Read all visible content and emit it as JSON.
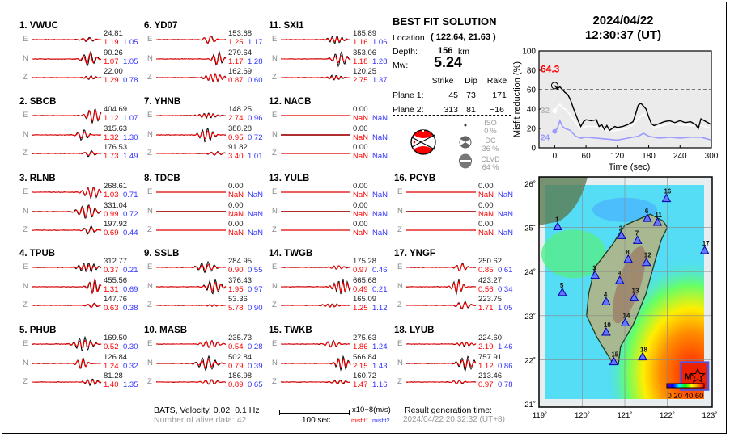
{
  "stations": [
    {
      "label": "1.  VWUC",
      "traces": [
        {
          "comp": "E",
          "amp": "24.81",
          "m1": "1.19",
          "m2": "1.05"
        },
        {
          "comp": "N",
          "amp": "90.26",
          "m1": "1.07",
          "m2": "1.05"
        },
        {
          "comp": "Z",
          "amp": "22.00",
          "m1": "1.29",
          "m2": "0.78"
        }
      ]
    },
    {
      "label": "2.  SBCB",
      "traces": [
        {
          "comp": "E",
          "amp": "404.69",
          "m1": "1.12",
          "m2": "1.07"
        },
        {
          "comp": "N",
          "amp": "315.63",
          "m1": "1.32",
          "m2": "1.30"
        },
        {
          "comp": "Z",
          "amp": "176.53",
          "m1": "1.73",
          "m2": "1.49"
        }
      ]
    },
    {
      "label": "3.  RLNB",
      "traces": [
        {
          "comp": "E",
          "amp": "268.61",
          "m1": "1.03",
          "m2": "0.71"
        },
        {
          "comp": "N",
          "amp": "331.04",
          "m1": "0.99",
          "m2": "0.72"
        },
        {
          "comp": "Z",
          "amp": "197.92",
          "m1": "0.69",
          "m2": "0.44"
        }
      ]
    },
    {
      "label": "4.  TPUB",
      "traces": [
        {
          "comp": "E",
          "amp": "312.77",
          "m1": "0.37",
          "m2": "0.21"
        },
        {
          "comp": "N",
          "amp": "455.56",
          "m1": "1.31",
          "m2": "0.69"
        },
        {
          "comp": "Z",
          "amp": "147.76",
          "m1": "0.63",
          "m2": "0.38"
        }
      ]
    },
    {
      "label": "5.  PHUB",
      "traces": [
        {
          "comp": "E",
          "amp": "169.50",
          "m1": "0.52",
          "m2": "0.30"
        },
        {
          "comp": "N",
          "amp": "126.84",
          "m1": "1.24",
          "m2": "0.32"
        },
        {
          "comp": "Z",
          "amp": "81.28",
          "m1": "1.40",
          "m2": "1.35"
        }
      ]
    },
    {
      "label": "6.  YD07",
      "traces": [
        {
          "comp": "E",
          "amp": "153.68",
          "m1": "1.25",
          "m2": "1.17"
        },
        {
          "comp": "N",
          "amp": "279.64",
          "m1": "1.17",
          "m2": "1.28"
        },
        {
          "comp": "Z",
          "amp": "162.69",
          "m1": "0.87",
          "m2": "0.60"
        }
      ]
    },
    {
      "label": "7.  YHNB",
      "traces": [
        {
          "comp": "E",
          "amp": "148.25",
          "m1": "2.74",
          "m2": "0.96"
        },
        {
          "comp": "N",
          "amp": "388.28",
          "m1": "0.95",
          "m2": "0.72"
        },
        {
          "comp": "Z",
          "amp": "91.82",
          "m1": "3.40",
          "m2": "1.01"
        }
      ]
    },
    {
      "label": "8.  TDCB",
      "traces": [
        {
          "comp": "E",
          "amp": "0.00",
          "m1": "NaN",
          "m2": "NaN"
        },
        {
          "comp": "N",
          "amp": "0.00",
          "m1": "NaN",
          "m2": "NaN"
        },
        {
          "comp": "Z",
          "amp": "0.00",
          "m1": "NaN",
          "m2": "NaN"
        }
      ]
    },
    {
      "label": "9.  SSLB",
      "traces": [
        {
          "comp": "E",
          "amp": "284.95",
          "m1": "0.90",
          "m2": "0.55"
        },
        {
          "comp": "N",
          "amp": "376.43",
          "m1": "1.95",
          "m2": "0.97"
        },
        {
          "comp": "Z",
          "amp": "53.36",
          "m1": "5.78",
          "m2": "0.90"
        }
      ]
    },
    {
      "label": "10. MASB",
      "traces": [
        {
          "comp": "E",
          "amp": "235.73",
          "m1": "0.54",
          "m2": "0.28"
        },
        {
          "comp": "N",
          "amp": "502.84",
          "m1": "0.79",
          "m2": "0.39"
        },
        {
          "comp": "Z",
          "amp": "186.98",
          "m1": "0.89",
          "m2": "0.65"
        }
      ]
    },
    {
      "label": "11. SXI1",
      "traces": [
        {
          "comp": "E",
          "amp": "185.89",
          "m1": "1.16",
          "m2": "1.06"
        },
        {
          "comp": "N",
          "amp": "353.06",
          "m1": "1.18",
          "m2": "1.28"
        },
        {
          "comp": "Z",
          "amp": "120.25",
          "m1": "2.75",
          "m2": "1.37"
        }
      ]
    },
    {
      "label": "12. NACB",
      "traces": [
        {
          "comp": "E",
          "amp": "0.00",
          "m1": "NaN",
          "m2": "NaN"
        },
        {
          "comp": "N",
          "amp": "0.00",
          "m1": "NaN",
          "m2": "NaN"
        },
        {
          "comp": "Z",
          "amp": "0.00",
          "m1": "NaN",
          "m2": "NaN"
        }
      ]
    },
    {
      "label": "13. YULB",
      "traces": [
        {
          "comp": "E",
          "amp": "0.00",
          "m1": "NaN",
          "m2": "NaN"
        },
        {
          "comp": "N",
          "amp": "0.00",
          "m1": "NaN",
          "m2": "NaN"
        },
        {
          "comp": "Z",
          "amp": "0.00",
          "m1": "NaN",
          "m2": "NaN"
        }
      ]
    },
    {
      "label": "14. TWGB",
      "traces": [
        {
          "comp": "E",
          "amp": "175.28",
          "m1": "0.97",
          "m2": "0.46"
        },
        {
          "comp": "N",
          "amp": "665.68",
          "m1": "0.49",
          "m2": "0.21"
        },
        {
          "comp": "Z",
          "amp": "165.09",
          "m1": "1.25",
          "m2": "1.12"
        }
      ]
    },
    {
      "label": "15. TWKB",
      "traces": [
        {
          "comp": "E",
          "amp": "275.63",
          "m1": "1.86",
          "m2": "1.24"
        },
        {
          "comp": "N",
          "amp": "566.84",
          "m1": "2.15",
          "m2": "1.43"
        },
        {
          "comp": "Z",
          "amp": "160.72",
          "m1": "1.47",
          "m2": "1.16"
        }
      ]
    },
    {
      "label": "16. PCYB",
      "traces": [
        {
          "comp": "E",
          "amp": "0.00",
          "m1": "NaN",
          "m2": "NaN"
        },
        {
          "comp": "N",
          "amp": "0.00",
          "m1": "NaN",
          "m2": "NaN"
        },
        {
          "comp": "Z",
          "amp": "0.00",
          "m1": "NaN",
          "m2": "NaN"
        }
      ]
    },
    {
      "label": "17. YNGF",
      "traces": [
        {
          "comp": "E",
          "amp": "250.62",
          "m1": "0.85",
          "m2": "0.61"
        },
        {
          "comp": "N",
          "amp": "423.27",
          "m1": "0.56",
          "m2": "0.34"
        },
        {
          "comp": "Z",
          "amp": "223.75",
          "m1": "1.71",
          "m2": "1.05"
        }
      ]
    },
    {
      "label": "18. LYUB",
      "traces": [
        {
          "comp": "E",
          "amp": "224.60",
          "m1": "2.19",
          "m2": "1.46"
        },
        {
          "comp": "N",
          "amp": "757.91",
          "m1": "1.12",
          "m2": "0.86"
        },
        {
          "comp": "Z",
          "amp": "213.46",
          "m1": "0.97",
          "m2": "0.78"
        }
      ]
    }
  ],
  "solution": {
    "title": "BEST FIT SOLUTION",
    "location_label": "Location",
    "location_value": "( 122.64,  21.63 )",
    "depth_label": "Depth:",
    "depth_value": "156",
    "depth_unit": "km",
    "mw_label": "Mw:",
    "mw_value": "5.24",
    "headers": [
      "Strike",
      "Dip",
      "Rake"
    ],
    "planes": [
      {
        "label": "Plane 1:",
        "strike": "45",
        "dip": "73",
        "rake": "−171"
      },
      {
        "label": "Plane 2:",
        "strike": "313",
        "dip": "81",
        "rake": "−16"
      }
    ],
    "components": [
      {
        "name": "ISO",
        "pct": "0 %"
      },
      {
        "name": "DC",
        "pct": "36 %"
      },
      {
        "name": "CLVD",
        "pct": "64 %"
      }
    ]
  },
  "footer": {
    "network_info": "BATS, Velocity, 0.02−0.1 Hz",
    "alive": "Number of alive data: 42",
    "scale_label": "100 sec",
    "unit": "x10−8(m/s)",
    "misfit1": "misfit1",
    "misfit2": "misfit2",
    "gen_label": "Result generation time:",
    "gen_time": "2024/04/22 20:32:32 (UT+8)"
  },
  "event": {
    "date": "2024/04/22",
    "time": "12:30:37  (UT)"
  },
  "chart_data": {
    "type": "line",
    "xlabel": "Time (sec)",
    "ylabel": "Misfit reduction (%)",
    "xlim": [
      -30,
      300
    ],
    "ylim": [
      0,
      100
    ],
    "xticks": [
      "0",
      "60",
      "120",
      "180",
      "240",
      "300"
    ],
    "yticks": [
      "0",
      "20",
      "40",
      "60",
      "80",
      "100"
    ],
    "threshold": 60,
    "annotations": {
      "best": "64.3",
      "white_start": "32",
      "blue_start": "24"
    },
    "colors": {
      "black": "#000000",
      "white": "#ffffff",
      "blue": "#9999ff",
      "best": "#ff0000"
    },
    "series": [
      {
        "color": "black",
        "x": [
          0,
          5,
          10,
          15,
          20,
          25,
          30,
          35,
          40,
          45,
          50,
          55,
          60,
          70,
          80,
          85,
          90,
          95,
          100,
          105,
          110,
          115,
          120,
          130,
          140,
          150,
          155,
          160,
          165,
          170,
          175,
          180,
          185,
          190,
          200,
          210,
          220,
          230,
          240,
          250,
          260,
          270,
          275,
          280,
          290,
          300
        ],
        "y": [
          64.3,
          61,
          63,
          60,
          57,
          55,
          50,
          42,
          35,
          28,
          22,
          27,
          29,
          28,
          29,
          22,
          24,
          19,
          23,
          18,
          20,
          22,
          21,
          22,
          24,
          27,
          35,
          44,
          46,
          43,
          40,
          32,
          25,
          23,
          25,
          27,
          28,
          26,
          28,
          26,
          27,
          24,
          20,
          30,
          27,
          24
        ]
      },
      {
        "color": "white",
        "x": [
          0,
          5,
          10,
          15,
          20,
          30,
          40,
          50,
          60,
          80,
          100,
          110,
          120,
          140,
          150,
          160,
          170,
          180,
          190,
          200,
          220,
          240,
          260,
          280,
          300
        ],
        "y": [
          38,
          42,
          45,
          41,
          40,
          34,
          26,
          20,
          22,
          22,
          18,
          17,
          18,
          20,
          24,
          30,
          35,
          30,
          20,
          22,
          25,
          24,
          23,
          23,
          20
        ]
      },
      {
        "color": "blue",
        "x": [
          0,
          5,
          10,
          15,
          20,
          30,
          40,
          50,
          60,
          80,
          100,
          120,
          140,
          160,
          170,
          180,
          200,
          220,
          240,
          260,
          280,
          300
        ],
        "y": [
          17,
          20,
          28,
          22,
          20,
          18,
          12,
          10,
          11,
          10,
          9,
          8,
          10,
          12,
          15,
          12,
          10,
          11,
          10,
          11,
          11,
          8
        ]
      }
    ]
  },
  "map": {
    "lat_ticks": [
      "26˚",
      "25˚",
      "24˚",
      "23˚",
      "22˚",
      "21˚"
    ],
    "lon_ticks": [
      "119˚",
      "120˚",
      "121˚",
      "122˚",
      "123˚"
    ],
    "epicenter": {
      "lon": 122.64,
      "lat": 21.63,
      "label": "M"
    },
    "colorbar_labels": "0 20 40 60",
    "stations": [
      {
        "id": "1",
        "lon": 119.42,
        "lat": 25.02
      },
      {
        "id": "2",
        "lon": 120.92,
        "lat": 24.82
      },
      {
        "id": "3",
        "lon": 120.3,
        "lat": 23.92
      },
      {
        "id": "4",
        "lon": 120.56,
        "lat": 23.32
      },
      {
        "id": "5",
        "lon": 119.53,
        "lat": 23.53
      },
      {
        "id": "6",
        "lon": 121.53,
        "lat": 25.21
      },
      {
        "id": "7",
        "lon": 121.3,
        "lat": 24.71
      },
      {
        "id": "8",
        "lon": 121.08,
        "lat": 24.28
      },
      {
        "id": "9",
        "lon": 120.88,
        "lat": 23.8
      },
      {
        "id": "10",
        "lon": 120.56,
        "lat": 22.63
      },
      {
        "id": "11",
        "lon": 121.77,
        "lat": 25.12
      },
      {
        "id": "12",
        "lon": 121.51,
        "lat": 24.21
      },
      {
        "id": "13",
        "lon": 121.22,
        "lat": 23.41
      },
      {
        "id": "14",
        "lon": 121.01,
        "lat": 22.84
      },
      {
        "id": "15",
        "lon": 120.74,
        "lat": 21.96
      },
      {
        "id": "16",
        "lon": 121.98,
        "lat": 25.66
      },
      {
        "id": "17",
        "lon": 122.88,
        "lat": 24.48
      },
      {
        "id": "18",
        "lon": 121.42,
        "lat": 22.07
      }
    ]
  }
}
